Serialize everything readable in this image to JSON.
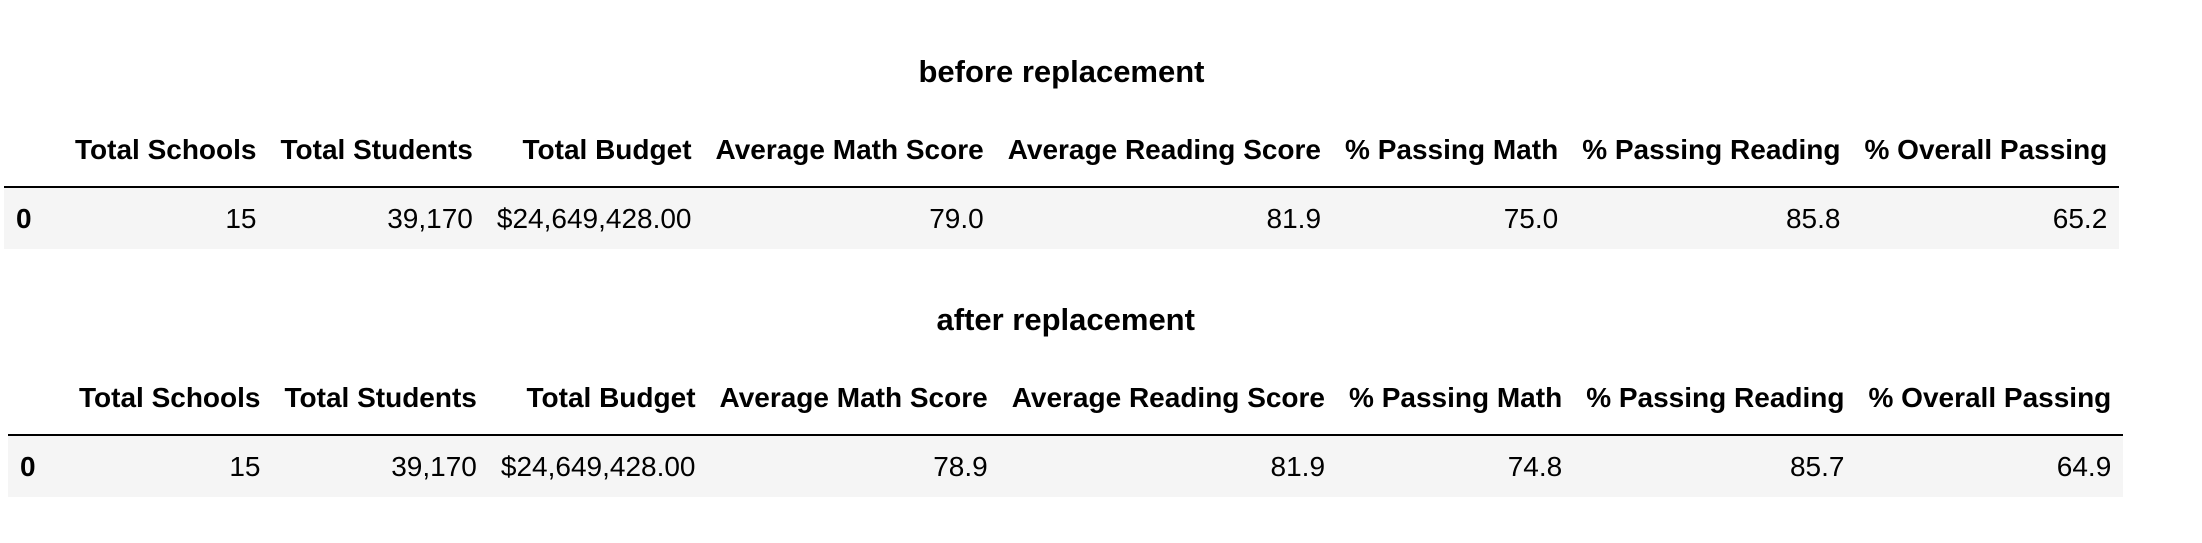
{
  "tables": [
    {
      "caption": "before replacement",
      "columns": [
        "Total Schools",
        "Total Students",
        "Total Budget",
        "Average Math Score",
        "Average Reading Score",
        "% Passing Math",
        "% Passing Reading",
        "% Overall Passing"
      ],
      "rows": [
        {
          "index": "0",
          "cells": [
            "15",
            "39,170",
            "$24,649,428.00",
            "79.0",
            "81.9",
            "75.0",
            "85.8",
            "65.2"
          ]
        }
      ]
    },
    {
      "caption": "after replacement",
      "columns": [
        "Total Schools",
        "Total Students",
        "Total Budget",
        "Average Math Score",
        "Average Reading Score",
        "% Passing Math",
        "% Passing Reading",
        "% Overall Passing"
      ],
      "rows": [
        {
          "index": "0",
          "cells": [
            "15",
            "39,170",
            "$24,649,428.00",
            "78.9",
            "81.9",
            "74.8",
            "85.7",
            "64.9"
          ]
        }
      ]
    }
  ]
}
